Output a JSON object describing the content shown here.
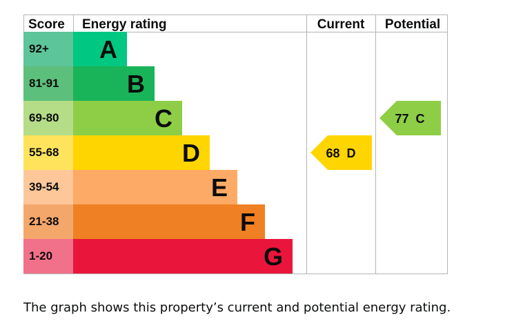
{
  "chart_data": {
    "type": "bar",
    "headers": {
      "score": "Score",
      "rating": "Energy rating",
      "current": "Current",
      "potential": "Potential"
    },
    "bands": [
      {
        "score": "92+",
        "letter": "A",
        "band_color": "#00c781",
        "score_color": "#5cc59a"
      },
      {
        "score": "81-91",
        "letter": "B",
        "band_color": "#19b459",
        "score_color": "#5dbf7c"
      },
      {
        "score": "69-80",
        "letter": "C",
        "band_color": "#8dce46",
        "score_color": "#b5dc87"
      },
      {
        "score": "55-68",
        "letter": "D",
        "band_color": "#ffd500",
        "score_color": "#ffe35c"
      },
      {
        "score": "39-54",
        "letter": "E",
        "band_color": "#fcaa65",
        "score_color": "#fdc79a"
      },
      {
        "score": "21-38",
        "letter": "F",
        "band_color": "#ef8023",
        "score_color": "#f4a76a"
      },
      {
        "score": "1-20",
        "letter": "G",
        "band_color": "#e9153b",
        "score_color": "#f2718a"
      }
    ],
    "current": {
      "value": 68,
      "letter": "D",
      "label": "68  D",
      "color": "#ffd500"
    },
    "potential": {
      "value": 77,
      "letter": "C",
      "label": "77  C",
      "color": "#8dce46"
    }
  },
  "caption": "The graph shows this property’s current and potential energy rating."
}
